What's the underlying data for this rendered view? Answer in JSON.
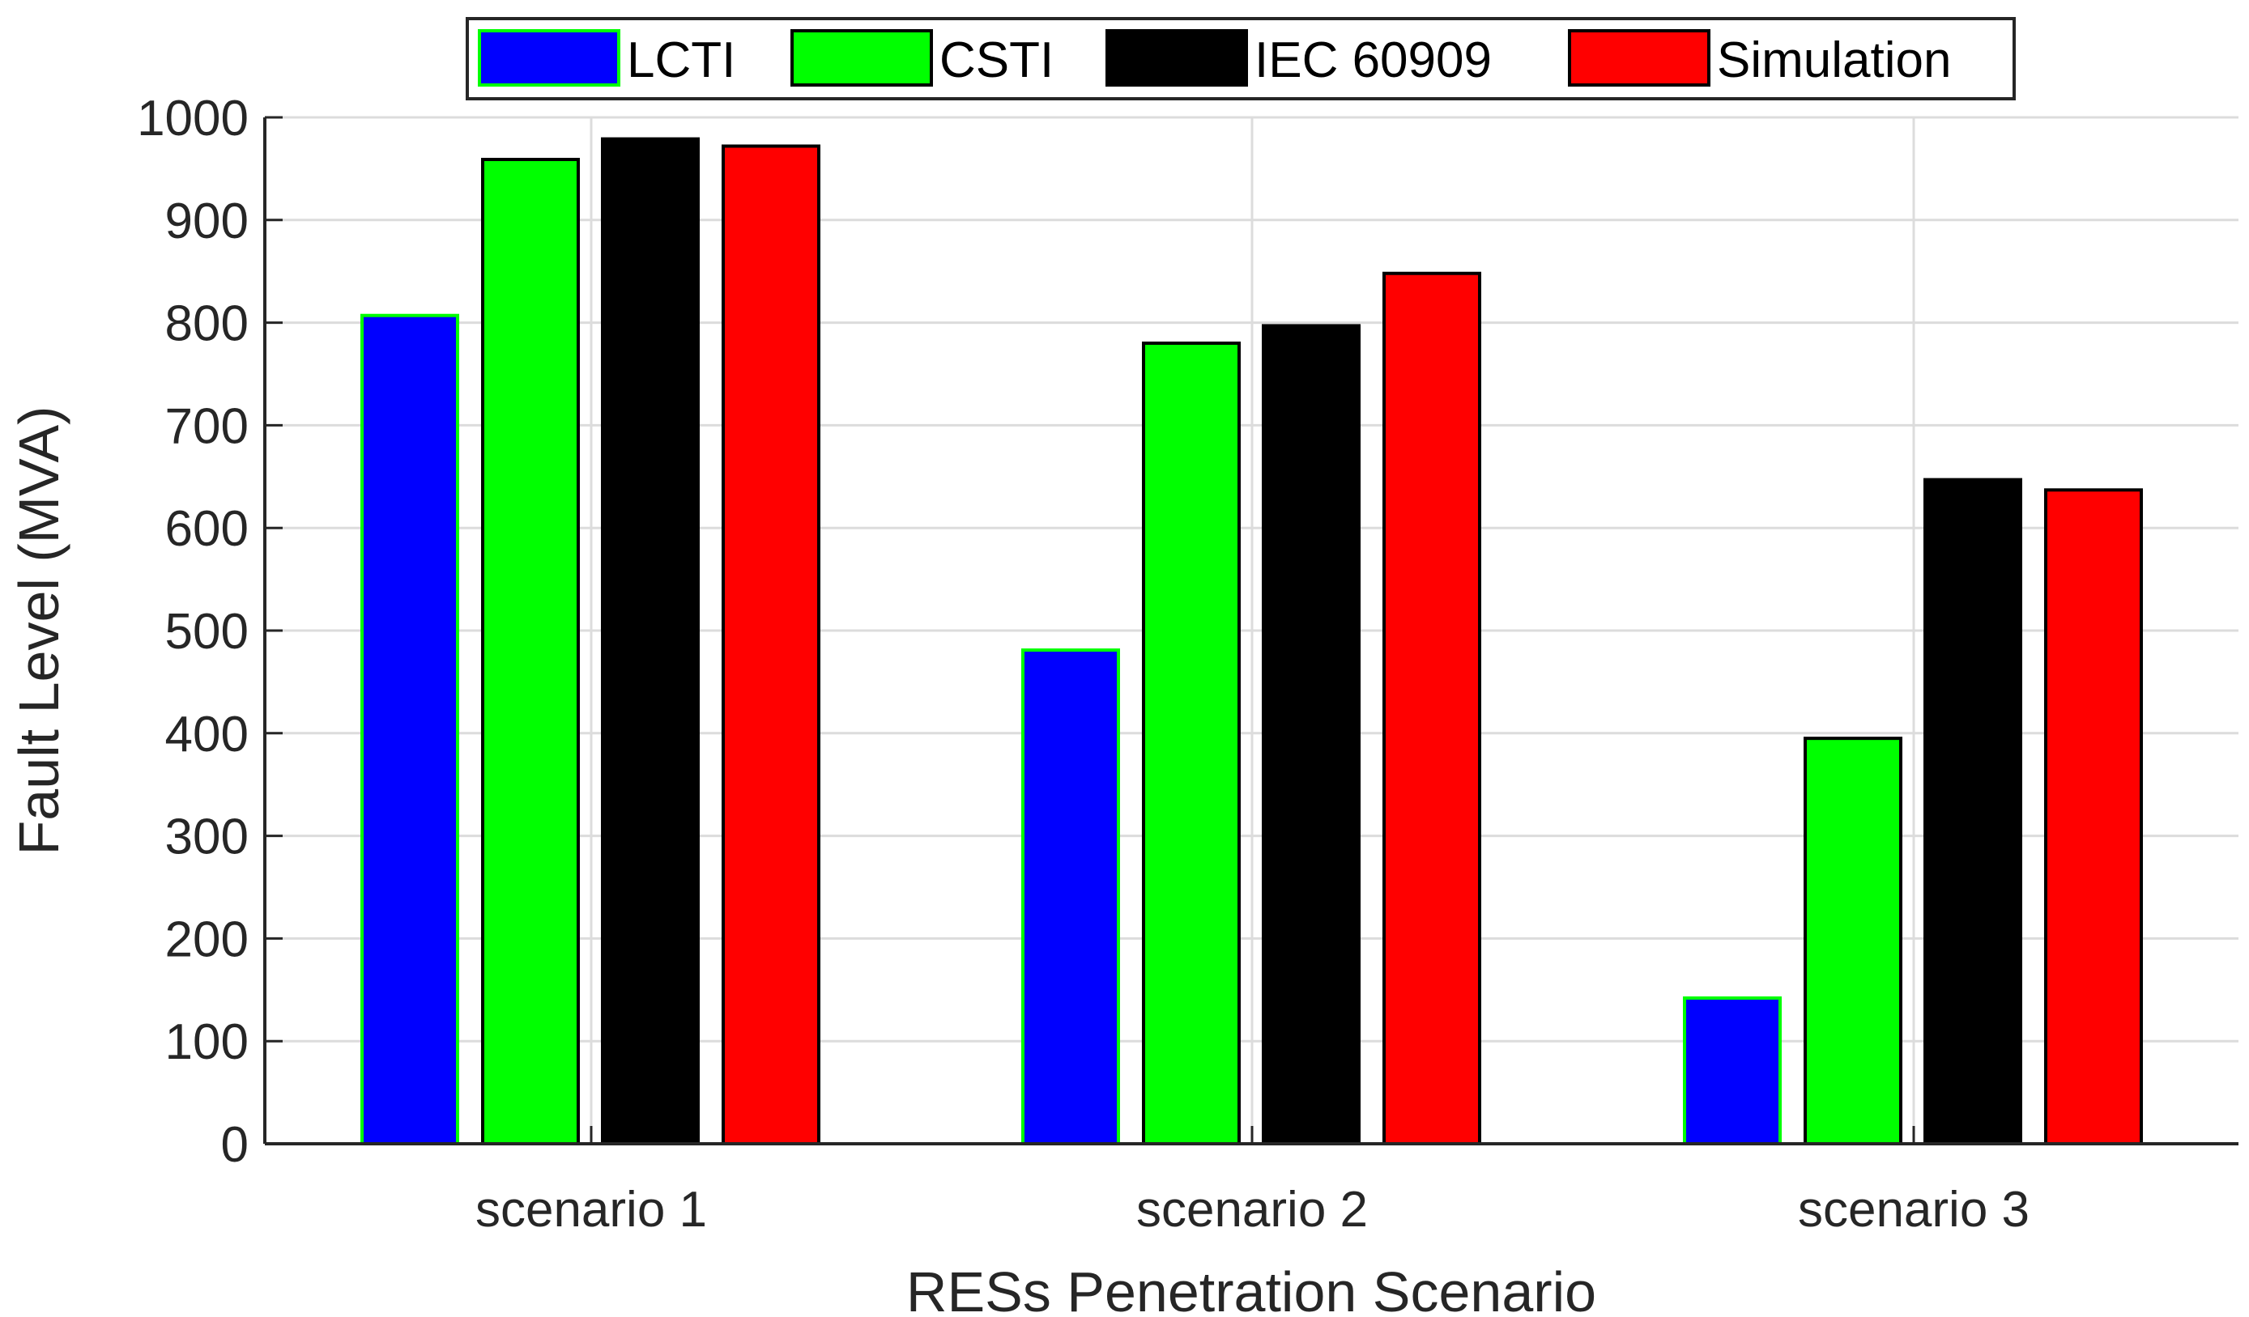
{
  "chart_data": {
    "type": "bar",
    "title": "",
    "xlabel": "RESs Penetration Scenario",
    "ylabel": "Fault Level (MVA)",
    "ylim": [
      0,
      1000
    ],
    "yticks": [
      "0",
      "100",
      "200",
      "300",
      "400",
      "500",
      "600",
      "700",
      "800",
      "900",
      "1000"
    ],
    "categories": [
      "scenario 1",
      "scenario 2",
      "scenario 3"
    ],
    "grid": true,
    "legend_position": "top-center",
    "series": [
      {
        "name": "LCTI",
        "color": "#0000ff",
        "edge": "#00ff00",
        "values": [
          807,
          481,
          142
        ]
      },
      {
        "name": "CSTI",
        "color": "#00ff00",
        "edge": "#000000",
        "values": [
          959,
          780,
          395
        ]
      },
      {
        "name": "IEC 60909",
        "color": "#000000",
        "edge": "#000000",
        "values": [
          979,
          797,
          647
        ]
      },
      {
        "name": "Simulation",
        "color": "#ff0000",
        "edge": "#000000",
        "values": [
          972,
          848,
          637
        ]
      }
    ]
  }
}
